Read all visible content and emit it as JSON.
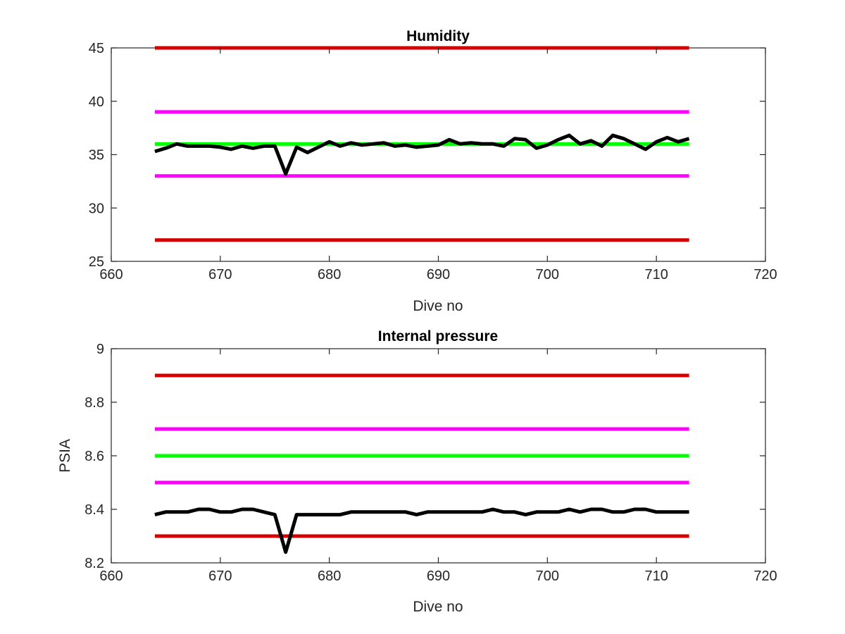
{
  "chart_data": [
    {
      "type": "line",
      "title": "Humidity",
      "xlabel": "Dive no",
      "ylabel": "",
      "xlim": [
        660,
        720
      ],
      "ylim": [
        25,
        45
      ],
      "xticks": [
        660,
        670,
        680,
        690,
        700,
        710,
        720
      ],
      "yticks": [
        25,
        30,
        35,
        40,
        45
      ],
      "grid": false,
      "reference_lines": [
        {
          "y": 45,
          "x_range": [
            664,
            713
          ],
          "color": "#d40000"
        },
        {
          "y": 39,
          "x_range": [
            664,
            713
          ],
          "color": "#ff00ff"
        },
        {
          "y": 36,
          "x_range": [
            664,
            713
          ],
          "color": "#00ff00"
        },
        {
          "y": 33,
          "x_range": [
            664,
            713
          ],
          "color": "#ff00ff"
        },
        {
          "y": 27,
          "x_range": [
            664,
            713
          ],
          "color": "#d40000"
        }
      ],
      "series": [
        {
          "color": "#000000",
          "x": [
            664,
            665,
            666,
            667,
            668,
            669,
            670,
            671,
            672,
            673,
            674,
            675,
            676,
            677,
            678,
            679,
            680,
            681,
            682,
            683,
            684,
            685,
            686,
            687,
            688,
            689,
            690,
            691,
            692,
            693,
            694,
            695,
            696,
            697,
            698,
            699,
            700,
            701,
            702,
            703,
            704,
            705,
            706,
            707,
            708,
            709,
            710,
            711,
            712,
            713
          ],
          "y": [
            35.3,
            35.6,
            36.0,
            35.8,
            35.8,
            35.8,
            35.7,
            35.5,
            35.8,
            35.6,
            35.8,
            35.8,
            33.2,
            35.7,
            35.2,
            35.7,
            36.2,
            35.8,
            36.1,
            35.9,
            36.0,
            36.1,
            35.8,
            35.9,
            35.7,
            35.8,
            35.9,
            36.4,
            36.0,
            36.1,
            36.0,
            36.0,
            35.8,
            36.5,
            36.4,
            35.6,
            35.9,
            36.4,
            36.8,
            36.0,
            36.3,
            35.8,
            36.8,
            36.5,
            36.0,
            35.5,
            36.2,
            36.6,
            36.2,
            36.5
          ]
        }
      ]
    },
    {
      "type": "line",
      "title": "Internal pressure",
      "xlabel": "Dive no",
      "ylabel": "PSIA",
      "xlim": [
        660,
        720
      ],
      "ylim": [
        8.2,
        9
      ],
      "xticks": [
        660,
        670,
        680,
        690,
        700,
        710,
        720
      ],
      "yticks": [
        "8.2",
        "8.4",
        "8.6",
        "8.8",
        "9"
      ],
      "grid": false,
      "reference_lines": [
        {
          "y": 8.9,
          "x_range": [
            664,
            713
          ],
          "color": "#d40000"
        },
        {
          "y": 8.7,
          "x_range": [
            664,
            713
          ],
          "color": "#ff00ff"
        },
        {
          "y": 8.6,
          "x_range": [
            664,
            713
          ],
          "color": "#00ff00"
        },
        {
          "y": 8.5,
          "x_range": [
            664,
            713
          ],
          "color": "#ff00ff"
        },
        {
          "y": 8.3,
          "x_range": [
            664,
            713
          ],
          "color": "#d40000"
        }
      ],
      "series": [
        {
          "color": "#000000",
          "x": [
            664,
            665,
            666,
            667,
            668,
            669,
            670,
            671,
            672,
            673,
            674,
            675,
            676,
            677,
            678,
            679,
            680,
            681,
            682,
            683,
            684,
            685,
            686,
            687,
            688,
            689,
            690,
            691,
            692,
            693,
            694,
            695,
            696,
            697,
            698,
            699,
            700,
            701,
            702,
            703,
            704,
            705,
            706,
            707,
            708,
            709,
            710,
            711,
            712,
            713
          ],
          "y": [
            8.38,
            8.39,
            8.39,
            8.39,
            8.4,
            8.4,
            8.39,
            8.39,
            8.4,
            8.4,
            8.39,
            8.38,
            8.24,
            8.38,
            8.38,
            8.38,
            8.38,
            8.38,
            8.39,
            8.39,
            8.39,
            8.39,
            8.39,
            8.39,
            8.38,
            8.39,
            8.39,
            8.39,
            8.39,
            8.39,
            8.39,
            8.4,
            8.39,
            8.39,
            8.38,
            8.39,
            8.39,
            8.39,
            8.4,
            8.39,
            8.4,
            8.4,
            8.39,
            8.39,
            8.4,
            8.4,
            8.39,
            8.39,
            8.39,
            8.39
          ]
        }
      ]
    }
  ]
}
